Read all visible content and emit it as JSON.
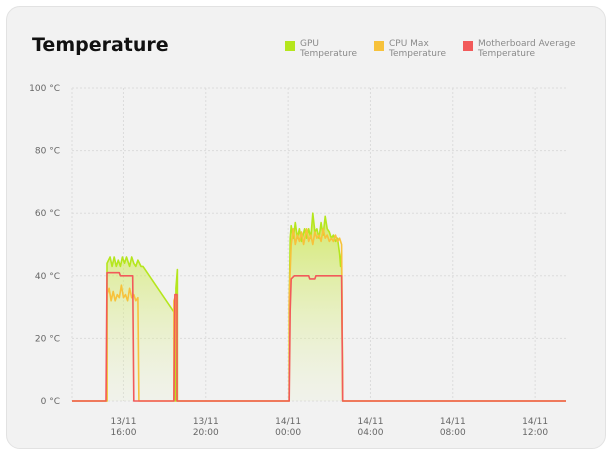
{
  "widget": {
    "title": "Temperature"
  },
  "legend": [
    {
      "label": "GPU\nTemperature",
      "color": "#b5e61d"
    },
    {
      "label": "CPU Max\nTemperature",
      "color": "#f7c23b"
    },
    {
      "label": "Motherboard Average\nTemperature",
      "color": "#f25a5a"
    }
  ],
  "chart_data": {
    "type": "area",
    "ylim": [
      0,
      100
    ],
    "y_ticks": [
      0,
      20,
      40,
      60,
      80,
      100
    ],
    "y_tick_labels": [
      "0 °C",
      "20 °C",
      "40 °C",
      "60 °C",
      "80 °C",
      "100 °C"
    ],
    "x_range_hours": [
      13.5,
      37.5
    ],
    "x_ticks": [
      {
        "hour": 16,
        "line1": "13/11",
        "line2": "16:00"
      },
      {
        "hour": 20,
        "line1": "13/11",
        "line2": "20:00"
      },
      {
        "hour": 24,
        "line1": "14/11",
        "line2": "00:00"
      },
      {
        "hour": 28,
        "line1": "14/11",
        "line2": "04:00"
      },
      {
        "hour": 32,
        "line1": "14/11",
        "line2": "08:00"
      },
      {
        "hour": 36,
        "line1": "14/11",
        "line2": "12:00"
      }
    ],
    "grid": true,
    "legend_position": "top-right",
    "series": [
      {
        "name": "GPU Temperature",
        "color": "#b5e61d",
        "fill": true,
        "points": [
          [
            13.5,
            0
          ],
          [
            15.2,
            0
          ],
          [
            15.2,
            44
          ],
          [
            15.35,
            46
          ],
          [
            15.45,
            43
          ],
          [
            15.55,
            46
          ],
          [
            15.65,
            43
          ],
          [
            15.75,
            45
          ],
          [
            15.85,
            43
          ],
          [
            15.95,
            46
          ],
          [
            16.05,
            44
          ],
          [
            16.15,
            46
          ],
          [
            16.3,
            43
          ],
          [
            16.4,
            46
          ],
          [
            16.5,
            44
          ],
          [
            16.6,
            43
          ],
          [
            16.7,
            45
          ],
          [
            16.85,
            43
          ],
          [
            16.95,
            43
          ],
          [
            18.5,
            28
          ],
          [
            18.5,
            0
          ],
          [
            18.55,
            0
          ],
          [
            18.55,
            36
          ],
          [
            18.62,
            42
          ],
          [
            18.62,
            0
          ],
          [
            24.05,
            0
          ],
          [
            24.05,
            30
          ],
          [
            24.1,
            52
          ],
          [
            24.15,
            56
          ],
          [
            24.25,
            52
          ],
          [
            24.35,
            57
          ],
          [
            24.45,
            52
          ],
          [
            24.55,
            55
          ],
          [
            24.65,
            51
          ],
          [
            24.8,
            55
          ],
          [
            24.9,
            52
          ],
          [
            25.0,
            55
          ],
          [
            25.1,
            52
          ],
          [
            25.2,
            60
          ],
          [
            25.3,
            54
          ],
          [
            25.4,
            55
          ],
          [
            25.5,
            52
          ],
          [
            25.6,
            57
          ],
          [
            25.7,
            53
          ],
          [
            25.8,
            59
          ],
          [
            25.9,
            55
          ],
          [
            26.0,
            54
          ],
          [
            26.1,
            52
          ],
          [
            26.2,
            53
          ],
          [
            26.3,
            51
          ],
          [
            26.4,
            52
          ],
          [
            26.5,
            47
          ],
          [
            26.55,
            43
          ],
          [
            26.6,
            47
          ],
          [
            26.65,
            0
          ],
          [
            37.5,
            0
          ]
        ]
      },
      {
        "name": "CPU Max Temperature",
        "color": "#f7c23b",
        "fill": false,
        "points": [
          [
            13.5,
            0
          ],
          [
            15.2,
            0
          ],
          [
            15.2,
            34
          ],
          [
            15.3,
            36
          ],
          [
            15.4,
            32
          ],
          [
            15.5,
            35
          ],
          [
            15.6,
            32
          ],
          [
            15.7,
            34
          ],
          [
            15.8,
            33
          ],
          [
            15.9,
            37
          ],
          [
            16.0,
            33
          ],
          [
            16.1,
            34
          ],
          [
            16.2,
            32
          ],
          [
            16.3,
            36
          ],
          [
            16.4,
            33
          ],
          [
            16.5,
            34
          ],
          [
            16.6,
            32
          ],
          [
            16.7,
            33
          ],
          [
            16.75,
            0
          ],
          [
            18.45,
            0
          ],
          [
            18.45,
            32
          ],
          [
            18.55,
            34
          ],
          [
            18.6,
            0
          ],
          [
            24.05,
            0
          ],
          [
            24.05,
            33
          ],
          [
            24.15,
            50
          ],
          [
            24.25,
            55
          ],
          [
            24.35,
            50
          ],
          [
            24.45,
            53
          ],
          [
            24.55,
            51
          ],
          [
            24.65,
            54
          ],
          [
            24.75,
            50
          ],
          [
            24.9,
            55
          ],
          [
            25.0,
            51
          ],
          [
            25.1,
            53
          ],
          [
            25.2,
            50
          ],
          [
            25.3,
            54
          ],
          [
            25.4,
            52
          ],
          [
            25.5,
            53
          ],
          [
            25.6,
            51
          ],
          [
            25.7,
            55
          ],
          [
            25.8,
            52
          ],
          [
            25.9,
            53
          ],
          [
            26.0,
            51
          ],
          [
            26.1,
            52
          ],
          [
            26.2,
            51
          ],
          [
            26.3,
            53
          ],
          [
            26.4,
            51
          ],
          [
            26.5,
            52
          ],
          [
            26.6,
            50
          ],
          [
            26.65,
            0
          ],
          [
            37.5,
            0
          ]
        ]
      },
      {
        "name": "Motherboard Average Temperature",
        "color": "#f25a5a",
        "fill": false,
        "points": [
          [
            13.5,
            0
          ],
          [
            15.15,
            0
          ],
          [
            15.2,
            41
          ],
          [
            15.8,
            41
          ],
          [
            15.85,
            40
          ],
          [
            16.45,
            40
          ],
          [
            16.5,
            0
          ],
          [
            18.45,
            0
          ],
          [
            18.5,
            34
          ],
          [
            18.6,
            34
          ],
          [
            18.6,
            0
          ],
          [
            24.05,
            0
          ],
          [
            24.1,
            29
          ],
          [
            24.15,
            39
          ],
          [
            24.3,
            40
          ],
          [
            25.0,
            40
          ],
          [
            25.05,
            39
          ],
          [
            25.3,
            39
          ],
          [
            25.35,
            40
          ],
          [
            26.6,
            40
          ],
          [
            26.65,
            0
          ],
          [
            37.5,
            0
          ]
        ]
      }
    ]
  }
}
